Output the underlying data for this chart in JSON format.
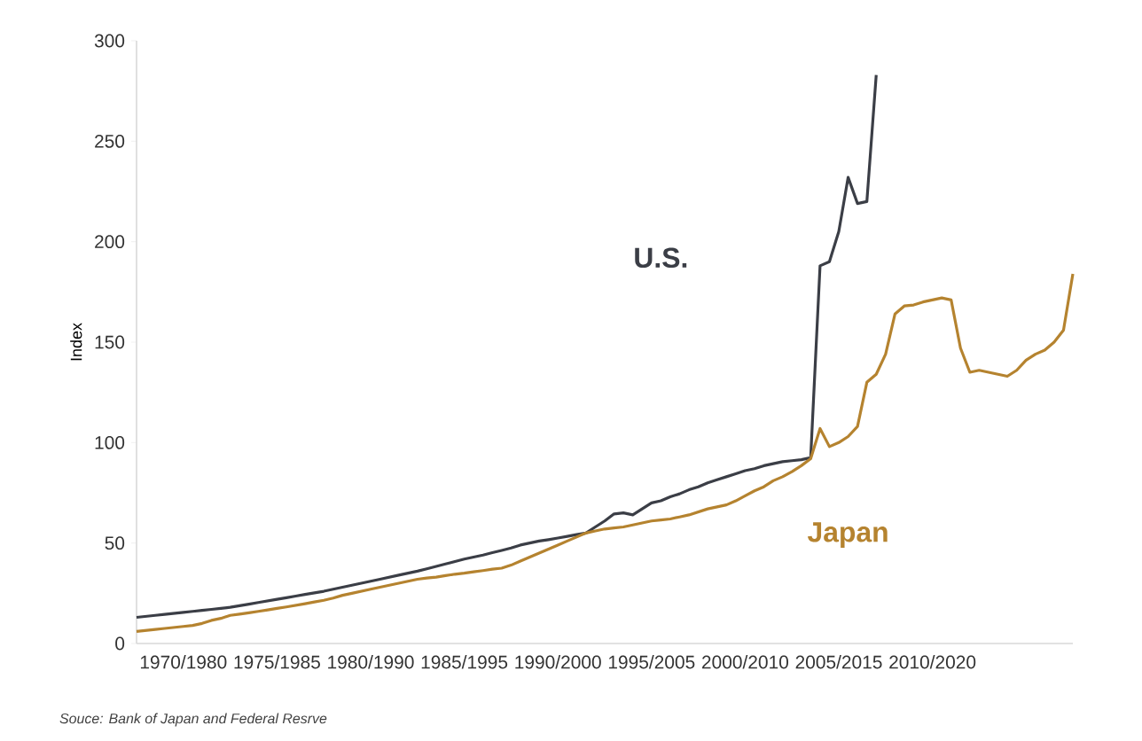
{
  "chart_data": {
    "type": "line",
    "ylabel": "Index",
    "ylim": [
      0,
      300
    ],
    "categories": [
      null,
      null,
      null,
      null,
      null,
      "1970/1980",
      null,
      null,
      null,
      null,
      null,
      null,
      null,
      null,
      null,
      "1975/1985",
      null,
      null,
      null,
      null,
      null,
      null,
      null,
      null,
      null,
      "1980/1990",
      null,
      null,
      null,
      null,
      null,
      null,
      null,
      null,
      null,
      "1985/1995",
      null,
      null,
      null,
      null,
      null,
      null,
      null,
      null,
      null,
      "1990/2000",
      null,
      null,
      null,
      null,
      null,
      null,
      null,
      null,
      null,
      "1995/2005",
      null,
      null,
      null,
      null,
      null,
      null,
      null,
      null,
      null,
      "2000/2010",
      null,
      null,
      null,
      null,
      null,
      null,
      null,
      null,
      null,
      "2005/2015",
      null,
      null,
      null,
      null,
      null,
      null,
      null,
      null,
      null,
      "2010/2020",
      null,
      null,
      null,
      null,
      null,
      null,
      null,
      null,
      null,
      null,
      null,
      null,
      null,
      null,
      null
    ],
    "yticks": [
      0,
      50,
      100,
      150,
      200,
      250,
      300
    ],
    "series": [
      {
        "name": "U.S.",
        "color": "#3b3e46",
        "values": [
          13,
          13.5,
          14,
          14.5,
          15,
          15.5,
          16,
          16.5,
          17,
          17.5,
          18,
          18.8,
          19.6,
          20.4,
          21.2,
          22,
          22.8,
          23.6,
          24.4,
          25.2,
          26,
          27,
          28,
          29,
          30,
          31,
          32,
          33,
          34,
          35,
          36,
          37.2,
          38.4,
          39.6,
          40.8,
          42,
          43,
          44,
          45.2,
          46.3,
          47.5,
          49,
          50,
          51,
          51.7,
          52.5,
          53.3,
          54.2,
          55,
          58,
          61,
          64.5,
          65,
          64,
          67,
          70,
          71,
          73,
          74.5,
          76.5,
          78,
          80,
          81.5,
          83,
          84.5,
          86,
          87,
          88.5,
          89.5,
          90.5,
          91,
          91.5,
          92.5,
          188,
          190,
          205,
          232,
          219,
          220,
          283,
          null,
          null,
          null,
          null,
          null,
          null,
          null,
          null,
          null,
          null,
          null,
          null,
          null,
          null,
          null,
          null,
          null,
          null,
          null,
          null,
          null
        ]
      },
      {
        "name": "Japan",
        "color": "#b5832f",
        "values": [
          6,
          6.5,
          7,
          7.5,
          8,
          8.5,
          9,
          10,
          11.5,
          12.5,
          14,
          14.6,
          15.3,
          16,
          16.7,
          17.5,
          18.2,
          19,
          19.8,
          20.7,
          21.5,
          22.6,
          24,
          25,
          26,
          27,
          28,
          29,
          30,
          31,
          32,
          32.6,
          33,
          33.8,
          34.5,
          35,
          35.7,
          36.3,
          37,
          37.5,
          39,
          41,
          43,
          45,
          47,
          49,
          51,
          53,
          55,
          56,
          57,
          57.5,
          58,
          59,
          60,
          61,
          61.5,
          62,
          63,
          64,
          65.5,
          67,
          68,
          69,
          71,
          73.5,
          76,
          78,
          81,
          83,
          85.5,
          88.5,
          92,
          107,
          98,
          100,
          103,
          108,
          130,
          134,
          144,
          164,
          168,
          168.5,
          170,
          171,
          172,
          171,
          147,
          135,
          136,
          135,
          134,
          133,
          136,
          141,
          144,
          146,
          150,
          156,
          184
        ]
      }
    ],
    "annotations": [
      "Souce: Bank of Japan and Federal Resrve"
    ]
  }
}
